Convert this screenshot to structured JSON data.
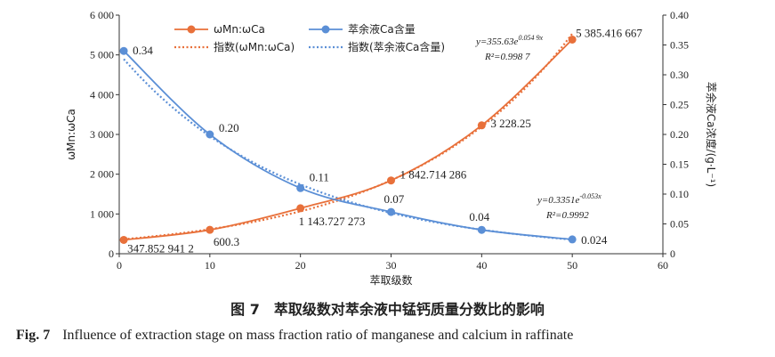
{
  "chart_data": {
    "type": "line",
    "xlabel": "萃取级数",
    "ylabel_left": "ωMn:ωCa",
    "ylabel_right": "萃余液Ca浓度/(g·L⁻¹)",
    "xlim": [
      0,
      60
    ],
    "ylim_left": [
      0,
      6000
    ],
    "ylim_right": [
      0,
      0.4
    ],
    "x_ticks": [
      "0",
      "10",
      "20",
      "30",
      "40",
      "50",
      "60"
    ],
    "y_left_ticks": [
      "0",
      "1 000",
      "2 000",
      "3 000",
      "4 000",
      "5 000",
      "6 000"
    ],
    "y_right_ticks": [
      "0",
      "0.05",
      "0.10",
      "0.15",
      "0.20",
      "0.25",
      "0.30",
      "0.35",
      "0.40"
    ],
    "series": [
      {
        "name": "ωMn:ωCa",
        "axis": "left",
        "color": "#e8703a",
        "x": [
          0.5,
          10,
          20,
          30,
          40,
          50
        ],
        "y": [
          347.8529412,
          600.3,
          1143.727273,
          1842.714286,
          3228.25,
          5385.416667
        ],
        "labels": [
          "347.852 941 2",
          "600.3",
          "1 143.727 273",
          "1 842.714 286",
          "3 228.25",
          "5 385.416 667"
        ]
      },
      {
        "name": "萃余液Ca含量",
        "axis": "right",
        "color": "#5b8fd6",
        "x": [
          0.5,
          10,
          20,
          30,
          40,
          50
        ],
        "y": [
          0.34,
          0.2,
          0.11,
          0.07,
          0.04,
          0.024
        ],
        "labels": [
          "0.34",
          "0.20",
          "0.11",
          "0.07",
          "0.04",
          "0.024"
        ]
      }
    ],
    "trendlines": [
      {
        "name": "指数(ωMn:ωCa)",
        "axis": "left",
        "color": "#e8703a",
        "a": 355.63,
        "b": 0.0549
      },
      {
        "name": "指数(萃余液Ca含量)",
        "axis": "right",
        "color": "#5b8fd6",
        "a": 0.3351,
        "b": -0.053
      }
    ],
    "equations": {
      "mn": {
        "eq": "y=355.63e",
        "exp": "0.054 9x",
        "r2": "R²=0.998 7"
      },
      "ca": {
        "eq": "y=0.3351e",
        "exp": "-0.053x",
        "r2": "R²=0.9992"
      }
    },
    "legend_position": "top-center"
  },
  "caption": {
    "cn": "图 7　萃取级数对萃余液中锰钙质量分数比的影响",
    "en_label": "Fig. 7",
    "en_text": "Influence of extraction stage on mass fraction ratio of manganese and calcium in raffinate"
  }
}
